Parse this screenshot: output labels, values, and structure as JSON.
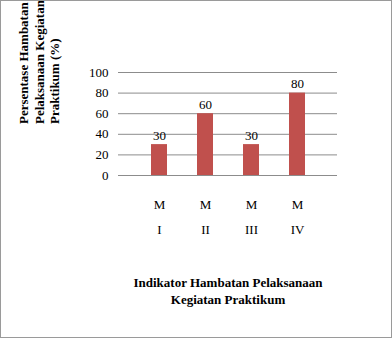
{
  "chart_data": {
    "type": "bar",
    "x_label": "Indikator Hambatan Pelaksanaan\nKegiatan Praktikum",
    "y_label": "Persentase Hambatan\nPelaksanaan Kegiatan\nPraktikum (%)",
    "categories": [
      "M\nI",
      "M\nII",
      "M\nIII",
      "M\nIV"
    ],
    "values": [
      30,
      60,
      30,
      80
    ],
    "color": "#c0504d",
    "ylim": [
      0,
      100
    ],
    "yticks": [
      0,
      20,
      40,
      60,
      80,
      100
    ],
    "grid": true,
    "data_labels": true
  }
}
